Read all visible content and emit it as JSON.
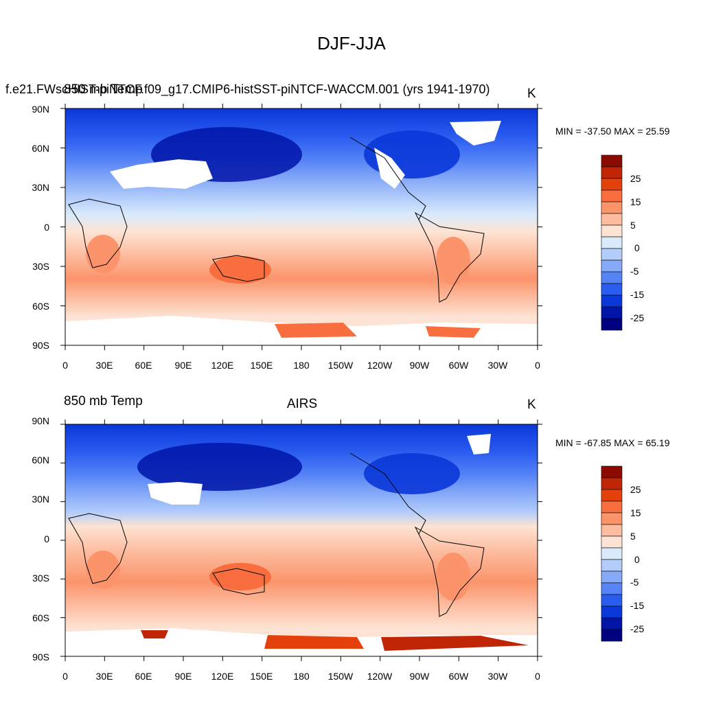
{
  "figure": {
    "title": "DJF-JJA"
  },
  "panels": [
    {
      "left_title": "850 mb Temp",
      "center_title": "f.e21.FWscHIST-piNTCF.f09_g17.CMIP6-histSST-piNTCF-WACCM.001 (yrs 1941-1970)",
      "units": "K",
      "minmax": "MIN = -37.50 MAX =  25.59"
    },
    {
      "left_title": "850 mb Temp",
      "center_title": "AIRS",
      "units": "K",
      "minmax": "MIN = -67.85 MAX =  65.19"
    }
  ],
  "axes": {
    "lat_ticks": [
      "90N",
      "60N",
      "30N",
      "0",
      "30S",
      "60S",
      "90S"
    ],
    "lon_ticks": [
      "0",
      "30E",
      "60E",
      "90E",
      "120E",
      "150E",
      "180",
      "150W",
      "120W",
      "90W",
      "60W",
      "30W",
      "0"
    ]
  },
  "colorbar": {
    "labels": [
      "25",
      "15",
      "5",
      "0",
      "-5",
      "-15",
      "-25"
    ],
    "colors": [
      "#8c0b00",
      "#c02505",
      "#e5410d",
      "#f86e3e",
      "#fb946b",
      "#fdbc9f",
      "#fde3d3",
      "#d9ebfb",
      "#b3cdfb",
      "#86a9f8",
      "#5684f6",
      "#2a5cf0",
      "#0a37d8",
      "#0014a8",
      "#000080"
    ]
  }
}
